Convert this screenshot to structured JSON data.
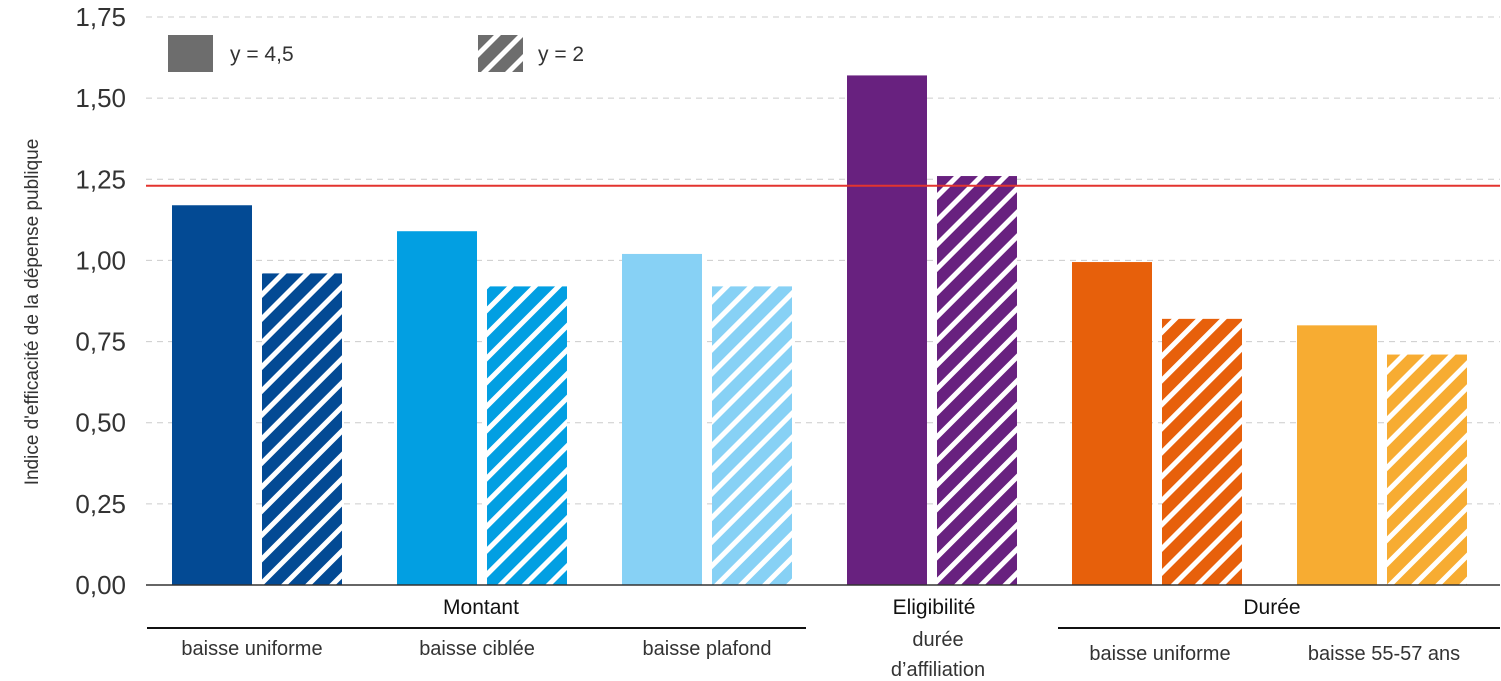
{
  "chart_data": {
    "type": "bar",
    "ylabel": "Indice d'efficacité de la dépense publique",
    "ylim": [
      0,
      1.75
    ],
    "yticks": [
      "0,00",
      "0,25",
      "0,50",
      "0,75",
      "1,00",
      "1,25",
      "1,50",
      "1,75"
    ],
    "grid": true,
    "legend_position": "top-left",
    "series": [
      {
        "name": "y = 4,5",
        "pattern": "solid"
      },
      {
        "name": "y = 2",
        "pattern": "hatched"
      }
    ],
    "reference_line": {
      "value": 1.23,
      "color": "#e3342f"
    },
    "categories": [
      {
        "group": "Montant",
        "label": "baisse uniforme",
        "color": "#034a94",
        "values": [
          1.17,
          0.96
        ]
      },
      {
        "group": "Montant",
        "label": "baisse ciblée",
        "color": "#029fe2",
        "values": [
          1.09,
          0.92
        ]
      },
      {
        "group": "Montant",
        "label": "baisse plafond",
        "color": "#87d1f5",
        "values": [
          1.02,
          0.92
        ]
      },
      {
        "group": "Eligibilité",
        "label": "durée d'affiliation",
        "label_lines": [
          "durée",
          "d’affiliation"
        ],
        "color": "#68217f",
        "values": [
          1.57,
          1.26
        ]
      },
      {
        "group": "Durée",
        "label": "baisse uniforme",
        "color": "#e7600b",
        "values": [
          0.995,
          0.82
        ]
      },
      {
        "group": "Durée",
        "label": "baisse 55-57 ans",
        "color": "#f7ac32",
        "values": [
          0.8,
          0.71
        ]
      }
    ],
    "groups": [
      "Montant",
      "Eligibilité",
      "Durée"
    ]
  }
}
